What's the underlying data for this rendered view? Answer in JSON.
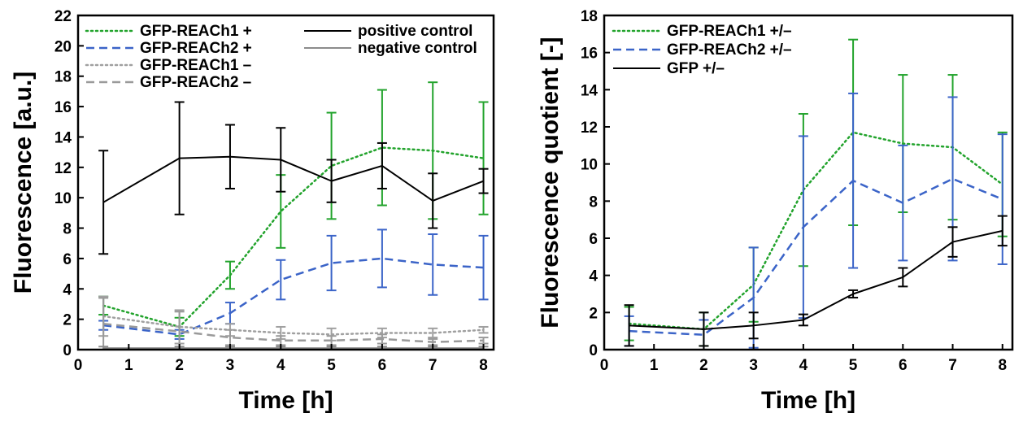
{
  "chart_data": [
    {
      "type": "line",
      "xlabel": "Time   [h]",
      "ylabel": "Fluorescence   [a.u.]",
      "xlim": [
        0,
        8.2
      ],
      "ylim": [
        0,
        22
      ],
      "xticks": [
        0,
        1,
        2,
        3,
        4,
        5,
        6,
        7,
        8
      ],
      "yticks": [
        0,
        2,
        4,
        6,
        8,
        10,
        12,
        14,
        16,
        18,
        20,
        22
      ],
      "grid": false,
      "legend_position": "top",
      "legend_columns": 2,
      "series": [
        {
          "name": "GFP-REACh1 +",
          "color": "#22a32c",
          "dash": "dotted",
          "width": 2.5,
          "x": [
            0.5,
            2,
            3,
            4,
            5,
            6,
            7,
            8
          ],
          "y": [
            2.9,
            1.5,
            4.9,
            9.1,
            12.1,
            13.3,
            13.1,
            12.6
          ],
          "err": [
            0.6,
            0.6,
            0.9,
            2.4,
            3.5,
            3.8,
            4.5,
            3.7
          ]
        },
        {
          "name": "GFP-REACh2 +",
          "color": "#3b64c8",
          "dash": "dashed",
          "width": 2.5,
          "x": [
            0.5,
            2,
            3,
            4,
            5,
            6,
            7,
            8
          ],
          "y": [
            1.6,
            1.0,
            2.4,
            4.6,
            5.7,
            6.0,
            5.6,
            5.4
          ],
          "err": [
            0.3,
            0.3,
            0.7,
            1.3,
            1.8,
            1.9,
            2.0,
            2.1
          ]
        },
        {
          "name": "GFP-REACh1 –",
          "color": "#a0a0a0",
          "dash": "dotted",
          "width": 2.5,
          "x": [
            0.5,
            2,
            3,
            4,
            5,
            6,
            7,
            8
          ],
          "y": [
            2.2,
            1.5,
            1.3,
            1.1,
            1.0,
            1.1,
            1.1,
            1.3
          ],
          "err": [
            1.3,
            1.1,
            0.4,
            0.4,
            0.4,
            0.3,
            0.3,
            0.2
          ]
        },
        {
          "name": "GFP-REACh2 –",
          "color": "#9a9a9a",
          "dash": "dashed",
          "width": 2.5,
          "x": [
            0.5,
            2,
            3,
            4,
            5,
            6,
            7,
            8
          ],
          "y": [
            1.7,
            1.2,
            0.8,
            0.6,
            0.6,
            0.7,
            0.5,
            0.6
          ],
          "err": [
            1.7,
            1.3,
            0.5,
            0.3,
            0.3,
            0.3,
            0.2,
            0.2
          ]
        },
        {
          "name": "positive control",
          "color": "#000000",
          "dash": "solid",
          "width": 2,
          "x": [
            0.5,
            2,
            3,
            4,
            5,
            6,
            7,
            8
          ],
          "y": [
            9.7,
            12.6,
            12.7,
            12.5,
            11.1,
            12.1,
            9.8,
            11.1
          ],
          "err": [
            3.4,
            3.7,
            2.1,
            2.1,
            1.4,
            1.5,
            1.8,
            0.8
          ]
        },
        {
          "name": "negative control",
          "color": "#8c8c8c",
          "dash": "solid",
          "width": 2,
          "x": [
            0.5,
            2,
            3,
            4,
            5,
            6,
            7,
            8
          ],
          "y": [
            0.1,
            0.1,
            0.1,
            0.1,
            0.1,
            0.1,
            0.1,
            0.1
          ],
          "err": [
            0.1,
            0.1,
            0.1,
            0.1,
            0.1,
            0.1,
            0.1,
            0.1
          ]
        }
      ]
    },
    {
      "type": "line",
      "xlabel": "Time   [h]",
      "ylabel": "Fluorescence quotient   [-]",
      "xlim": [
        0,
        8.2
      ],
      "ylim": [
        0,
        18
      ],
      "xticks": [
        0,
        1,
        2,
        3,
        4,
        5,
        6,
        7,
        8
      ],
      "yticks": [
        0,
        2,
        4,
        6,
        8,
        10,
        12,
        14,
        16,
        18
      ],
      "grid": false,
      "legend_position": "top-left",
      "legend_columns": 1,
      "series": [
        {
          "name": "GFP-REACh1 +/–",
          "color": "#22a32c",
          "dash": "dotted",
          "width": 2.5,
          "x": [
            0.5,
            2,
            3,
            4,
            5,
            6,
            7,
            8
          ],
          "y": [
            1.4,
            1.1,
            3.5,
            8.6,
            11.7,
            11.1,
            10.9,
            8.9
          ],
          "err": [
            0.9,
            0.9,
            2.0,
            4.1,
            5.0,
            3.7,
            3.9,
            2.8
          ]
        },
        {
          "name": "GFP-REACh2 +/–",
          "color": "#3b64c8",
          "dash": "dashed",
          "width": 2.5,
          "x": [
            0.5,
            2,
            3,
            4,
            5,
            6,
            7,
            8
          ],
          "y": [
            1.0,
            0.8,
            2.8,
            6.6,
            9.1,
            7.9,
            9.2,
            8.1
          ],
          "err": [
            0.8,
            0.8,
            2.7,
            4.9,
            4.7,
            3.1,
            4.4,
            3.5
          ]
        },
        {
          "name": "GFP +/–",
          "color": "#000000",
          "dash": "solid",
          "width": 2,
          "x": [
            0.5,
            2,
            3,
            4,
            5,
            6,
            7,
            8
          ],
          "y": [
            1.3,
            1.1,
            1.3,
            1.6,
            3.0,
            3.9,
            5.8,
            6.4
          ],
          "err": [
            1.1,
            0.9,
            0.7,
            0.3,
            0.2,
            0.5,
            0.8,
            0.8
          ]
        }
      ]
    }
  ]
}
